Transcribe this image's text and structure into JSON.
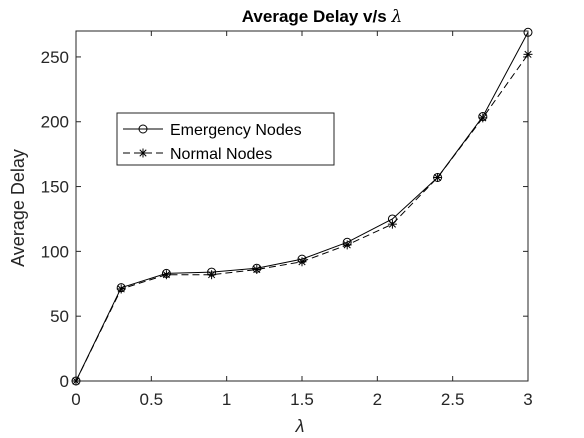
{
  "chart_data": {
    "type": "line",
    "title": "Average Delay v/s",
    "title_symbol": "λ",
    "xlabel": "λ",
    "ylabel": "Average Delay",
    "xlim": [
      0,
      3
    ],
    "ylim": [
      0,
      270
    ],
    "xticks": [
      0,
      0.5,
      1,
      1.5,
      2,
      2.5,
      3
    ],
    "xtick_labels": [
      "0",
      "0.5",
      "1",
      "1.5",
      "2",
      "2.5",
      "3"
    ],
    "yticks": [
      0,
      50,
      100,
      150,
      200,
      250
    ],
    "ytick_labels": [
      "0",
      "50",
      "100",
      "150",
      "200",
      "250"
    ],
    "grid": false,
    "legend_position": "upper-left",
    "x": [
      0,
      0.3,
      0.6,
      0.9,
      1.2,
      1.5,
      1.8,
      2.1,
      2.4,
      2.7,
      3.0
    ],
    "series": [
      {
        "name": "Emergency Nodes",
        "line_style": "solid",
        "marker": "circle",
        "values": [
          0,
          72,
          83,
          84,
          87,
          94,
          107,
          125,
          157,
          204,
          269
        ]
      },
      {
        "name": "Normal Nodes",
        "line_style": "dashed",
        "marker": "asterisk",
        "values": [
          0,
          71,
          82,
          82,
          86,
          92,
          105,
          121,
          157,
          203,
          252
        ]
      }
    ],
    "colors": {
      "axes": "#262626",
      "line": "#000000"
    }
  }
}
